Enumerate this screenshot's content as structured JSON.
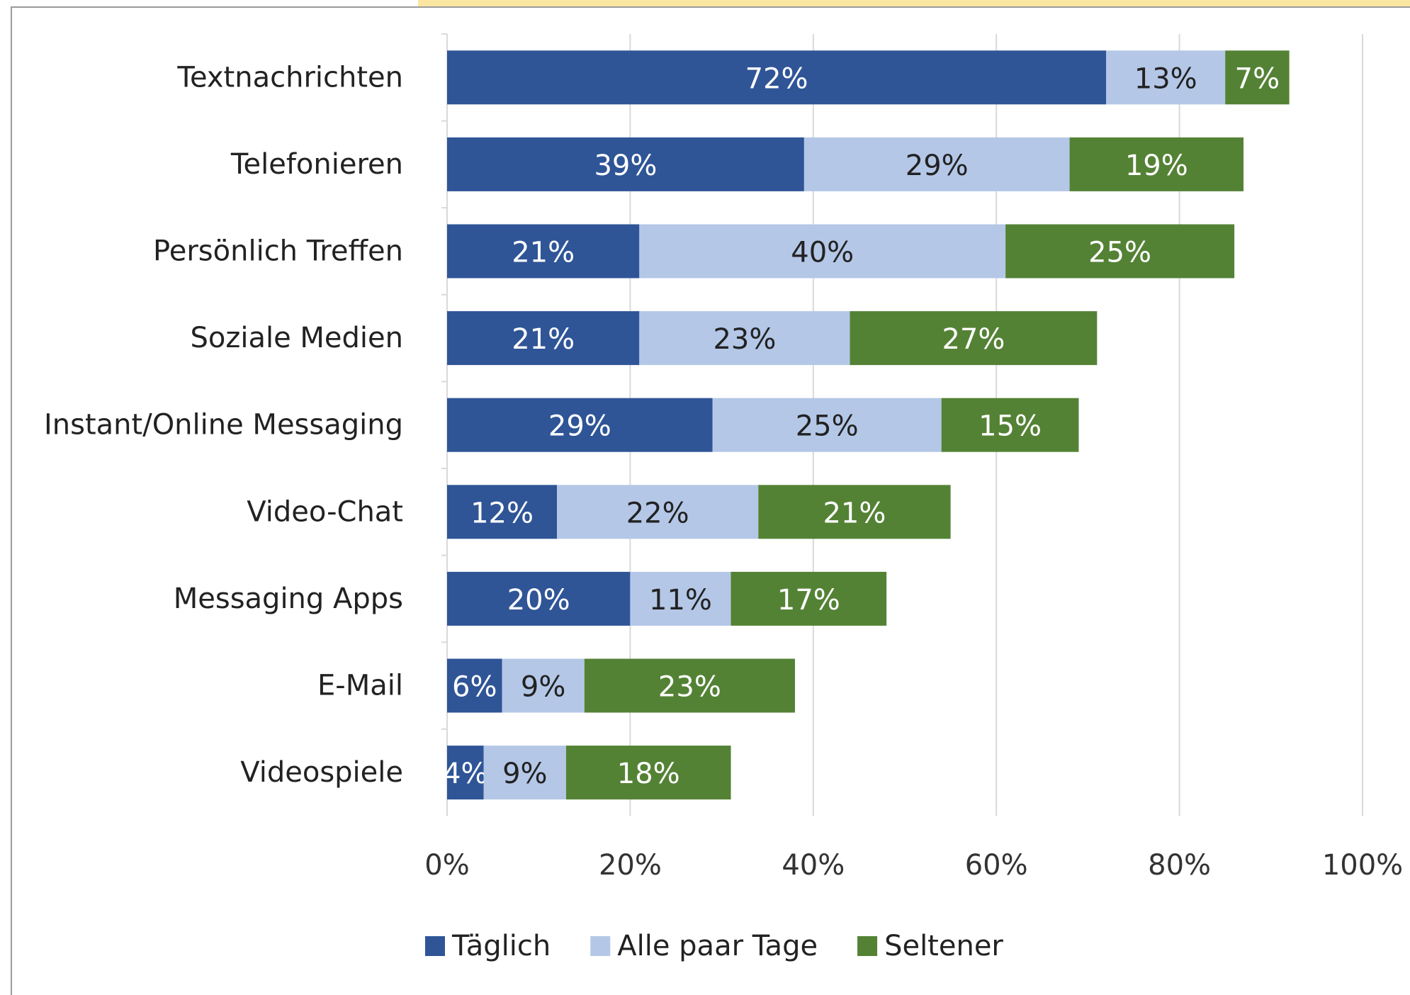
{
  "chart_data": {
    "type": "stacked-barh",
    "categories": [
      "Textnachrichten",
      "Telefonieren",
      "Persönlich Treffen",
      "Soziale Medien",
      "Instant/Online Messaging",
      "Video-Chat",
      "Messaging Apps",
      "E-Mail",
      "Videospiele"
    ],
    "series": [
      {
        "name": "Täglich",
        "color": "#2f5597",
        "values": [
          72,
          39,
          21,
          21,
          29,
          12,
          20,
          6,
          4
        ],
        "value_labels": [
          "72%",
          "39%",
          "21%",
          "21%",
          "29%",
          "12%",
          "20%",
          "6%",
          "4%"
        ]
      },
      {
        "name": "Alle paar Tage",
        "color": "#b4c7e7",
        "values": [
          13,
          29,
          40,
          23,
          25,
          22,
          11,
          9,
          9
        ],
        "value_labels": [
          "13%",
          "29%",
          "40%",
          "23%",
          "25%",
          "22%",
          "11%",
          "9%",
          "9%"
        ]
      },
      {
        "name": "Seltener",
        "color": "#548235",
        "values": [
          7,
          19,
          25,
          27,
          15,
          21,
          17,
          23,
          18
        ],
        "value_labels": [
          "7%",
          "19%",
          "25%",
          "27%",
          "15%",
          "21%",
          "17%",
          "23%",
          "18%"
        ]
      }
    ],
    "xlim": [
      0,
      100
    ],
    "xticks": [
      {
        "value": 0,
        "label": "0%"
      },
      {
        "value": 20,
        "label": "20%"
      },
      {
        "value": 40,
        "label": "40%"
      },
      {
        "value": 60,
        "label": "60%"
      },
      {
        "value": 80,
        "label": "80%"
      },
      {
        "value": 100,
        "label": "100%"
      }
    ],
    "grid": true,
    "legend": "bottom"
  }
}
